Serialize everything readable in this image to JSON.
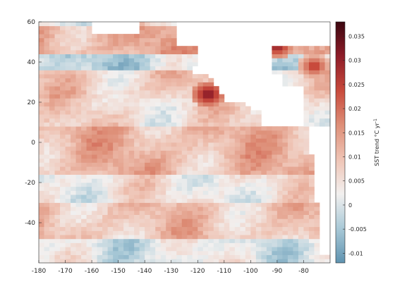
{
  "chart_data": {
    "type": "heatmap",
    "xlim": [
      -180,
      -70
    ],
    "ylim": [
      -60,
      60
    ],
    "x_ticks": [
      -180,
      -170,
      -160,
      -150,
      -140,
      -130,
      -120,
      -110,
      -100,
      -90,
      -80
    ],
    "y_ticks": [
      60,
      40,
      20,
      0,
      -20,
      -40
    ],
    "x_tick_labels": [
      "-180",
      "-170",
      "-160",
      "-150",
      "-140",
      "-130",
      "-120",
      "-110",
      "-100",
      "-90",
      "-80"
    ],
    "y_tick_labels": [
      "60",
      "40",
      "20",
      "0",
      "-20",
      "-40"
    ],
    "grid": false,
    "land_color": "#ffffff",
    "colorbar": {
      "label": "SST trend °C yr",
      "label_superscript": "-1",
      "range": [
        -0.012,
        0.038
      ],
      "ticks": [
        0.035,
        0.03,
        0.025,
        0.02,
        0.015,
        0.01,
        0.005,
        0,
        -0.005,
        -0.01
      ],
      "tick_labels": [
        "0.035",
        "0.03",
        "0.025",
        "0.02",
        "0.015",
        "0.01",
        "0.005",
        "0",
        "-0.005",
        "-0.01"
      ],
      "colormap": [
        "#5f93b0",
        "#a9c9d7",
        "#f2f0ef",
        "#efc4b5",
        "#de8f78",
        "#c84a3c",
        "#8e1c28",
        "#3c0710"
      ]
    },
    "trend_field": {
      "lon_step": 2,
      "lat_step": 2,
      "description_bands": [
        {
          "lat": [
            44,
            58
          ],
          "value": 0.012
        },
        {
          "lat": [
            36,
            44
          ],
          "value": -0.002
        },
        {
          "lat": [
            22,
            36
          ],
          "value": 0.008
        },
        {
          "lat": [
            8,
            22
          ],
          "value": 0.006
        },
        {
          "lat": [
            -16,
            8
          ],
          "value": 0.011
        },
        {
          "lat": [
            -30,
            -16
          ],
          "value": 0.004
        },
        {
          "lat": [
            -48,
            -30
          ],
          "value": 0.009
        },
        {
          "lat": [
            -60,
            -48
          ],
          "value": 0.001
        }
      ],
      "hotspots": [
        {
          "lon": -116,
          "lat": 24,
          "value": 0.034
        },
        {
          "lon": -90,
          "lat": 48,
          "value": 0.032
        },
        {
          "lon": -76,
          "lat": 38,
          "value": 0.028
        }
      ]
    }
  }
}
